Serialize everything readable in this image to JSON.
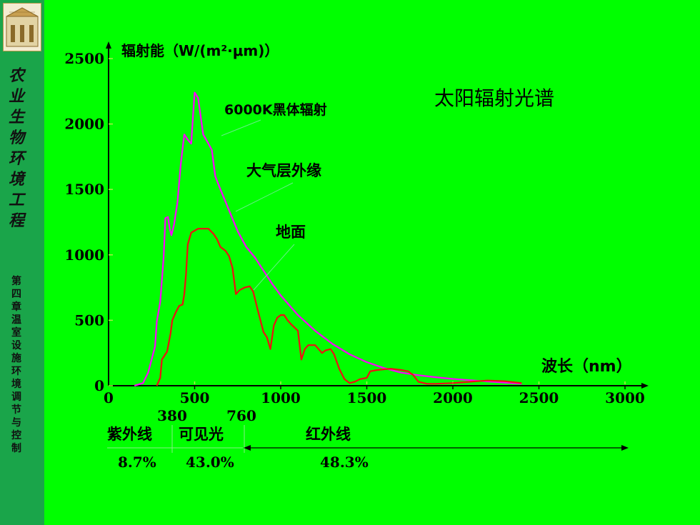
{
  "sidebar": {
    "course_title": "农业生物环境工程",
    "chapter_title": "第四章 温室设施环境调节与控制"
  },
  "chart_data": {
    "type": "line",
    "title": "太阳辐射光谱",
    "ylabel": "辐射能（W/(m²·μm)）",
    "xlabel": "波长（nm）",
    "xlim": [
      0,
      3000
    ],
    "ylim": [
      0,
      2500
    ],
    "x_ticks": [
      "0",
      "500",
      "1000",
      "1500",
      "2000",
      "2500",
      "3000"
    ],
    "y_ticks": [
      "0",
      "500",
      "1000",
      "1500",
      "2000",
      "2500"
    ],
    "series": [
      {
        "name": "6000K黑体辐射",
        "color": "#ff00ff",
        "points": [
          [
            150,
            0
          ],
          [
            200,
            20
          ],
          [
            230,
            100
          ],
          [
            270,
            300
          ],
          [
            280,
            490
          ],
          [
            300,
            640
          ],
          [
            320,
            980
          ],
          [
            330,
            1280
          ],
          [
            345,
            1290
          ],
          [
            355,
            1200
          ],
          [
            365,
            1150
          ],
          [
            380,
            1230
          ],
          [
            400,
            1400
          ],
          [
            420,
            1700
          ],
          [
            440,
            1920
          ],
          [
            460,
            1880
          ],
          [
            480,
            1850
          ],
          [
            490,
            2050
          ],
          [
            500,
            2240
          ],
          [
            520,
            2200
          ],
          [
            550,
            1920
          ],
          [
            580,
            1850
          ],
          [
            600,
            1800
          ],
          [
            620,
            1600
          ],
          [
            650,
            1500
          ],
          [
            700,
            1340
          ],
          [
            750,
            1180
          ],
          [
            800,
            1060
          ],
          [
            850,
            980
          ],
          [
            900,
            880
          ],
          [
            950,
            780
          ],
          [
            1000,
            690
          ],
          [
            1100,
            540
          ],
          [
            1200,
            420
          ],
          [
            1300,
            320
          ],
          [
            1400,
            240
          ],
          [
            1500,
            180
          ],
          [
            1600,
            135
          ],
          [
            1700,
            100
          ],
          [
            1800,
            80
          ],
          [
            1900,
            65
          ],
          [
            2000,
            52
          ],
          [
            2100,
            42
          ],
          [
            2200,
            33
          ],
          [
            2300,
            24
          ],
          [
            2400,
            15
          ]
        ]
      },
      {
        "name": "大气层外缘",
        "color": "#ff00ff",
        "points": []
      },
      {
        "name": "地面",
        "color": "#ee1111",
        "points": [
          [
            280,
            0
          ],
          [
            300,
            60
          ],
          [
            310,
            200
          ],
          [
            330,
            240
          ],
          [
            340,
            260
          ],
          [
            360,
            400
          ],
          [
            370,
            500
          ],
          [
            390,
            560
          ],
          [
            410,
            610
          ],
          [
            430,
            620
          ],
          [
            440,
            700
          ],
          [
            450,
            850
          ],
          [
            460,
            1080
          ],
          [
            480,
            1170
          ],
          [
            520,
            1200
          ],
          [
            580,
            1200
          ],
          [
            610,
            1160
          ],
          [
            630,
            1120
          ],
          [
            650,
            1060
          ],
          [
            680,
            1030
          ],
          [
            700,
            990
          ],
          [
            720,
            900
          ],
          [
            740,
            700
          ],
          [
            760,
            730
          ],
          [
            790,
            750
          ],
          [
            820,
            760
          ],
          [
            840,
            720
          ],
          [
            870,
            560
          ],
          [
            900,
            410
          ],
          [
            920,
            370
          ],
          [
            940,
            280
          ],
          [
            960,
            460
          ],
          [
            980,
            520
          ],
          [
            1000,
            540
          ],
          [
            1020,
            540
          ],
          [
            1040,
            500
          ],
          [
            1060,
            470
          ],
          [
            1100,
            420
          ],
          [
            1120,
            200
          ],
          [
            1140,
            280
          ],
          [
            1160,
            310
          ],
          [
            1200,
            310
          ],
          [
            1220,
            280
          ],
          [
            1240,
            250
          ],
          [
            1260,
            270
          ],
          [
            1290,
            280
          ],
          [
            1310,
            240
          ],
          [
            1340,
            130
          ],
          [
            1370,
            50
          ],
          [
            1400,
            20
          ],
          [
            1430,
            30
          ],
          [
            1460,
            50
          ],
          [
            1500,
            60
          ],
          [
            1520,
            110
          ],
          [
            1560,
            120
          ],
          [
            1640,
            130
          ],
          [
            1700,
            120
          ],
          [
            1740,
            110
          ],
          [
            1770,
            80
          ],
          [
            1800,
            30
          ],
          [
            1850,
            15
          ],
          [
            1900,
            15
          ],
          [
            2000,
            20
          ],
          [
            2100,
            30
          ],
          [
            2200,
            40
          ],
          [
            2300,
            35
          ],
          [
            2400,
            20
          ]
        ]
      }
    ],
    "annotations": {
      "curve_labels": [
        "6000K黑体辐射",
        "大气层外缘",
        "地面"
      ],
      "boundary_labels": [
        "380",
        "760"
      ],
      "region_names": [
        "紫外线",
        "可见光",
        "红外线"
      ],
      "region_percents": [
        "8.7%",
        "43.0%",
        "48.3%"
      ]
    }
  }
}
